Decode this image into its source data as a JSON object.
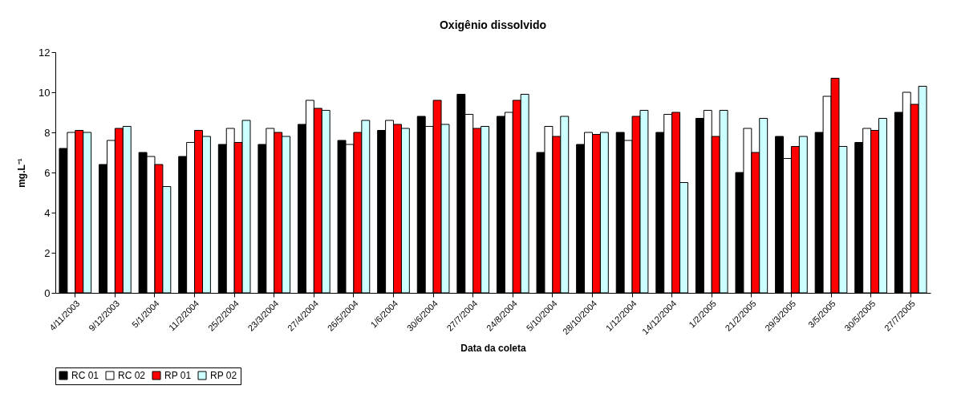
{
  "chart_data": {
    "type": "bar",
    "title": "Oxigênio dissolvido",
    "xlabel": "Data da coleta",
    "ylabel": "mg.L⁻¹",
    "categories": [
      "4/11/2003",
      "9/12/2003",
      "5/1/2004",
      "11/2/2004",
      "25/2/2004",
      "23/3/2004",
      "27/4/2004",
      "26/5/2004",
      "1/6/2004",
      "30/6/2004",
      "27/7/2004",
      "24/8/2004",
      "5/10/2004",
      "28/10/2004",
      "1/12/2004",
      "14/12/2004",
      "1/2/2005",
      "21/2/2005",
      "29/3/2005",
      "3/5/2005",
      "30/5/2005",
      "27/7/2005"
    ],
    "series": [
      {
        "name": "RC 01",
        "color": "#000000",
        "values": [
          7.2,
          6.4,
          7.0,
          6.8,
          7.4,
          7.4,
          8.4,
          7.6,
          8.1,
          8.8,
          9.9,
          8.8,
          7.0,
          7.4,
          8.0,
          8.0,
          8.7,
          6.0,
          7.8,
          8.0,
          7.5,
          9.0
        ]
      },
      {
        "name": "RC 02",
        "color": "#ffffff",
        "values": [
          8.0,
          7.6,
          6.8,
          7.5,
          8.2,
          8.2,
          9.6,
          7.4,
          8.6,
          8.3,
          8.9,
          9.0,
          8.3,
          8.0,
          7.6,
          8.9,
          9.1,
          8.2,
          6.7,
          9.8,
          8.2,
          10.0
        ]
      },
      {
        "name": "RP 01",
        "color": "#ff0000",
        "values": [
          8.1,
          8.2,
          6.4,
          8.1,
          7.5,
          8.0,
          9.2,
          8.0,
          8.4,
          9.6,
          8.2,
          9.6,
          7.8,
          7.9,
          8.8,
          9.0,
          7.8,
          7.0,
          7.3,
          10.7,
          8.1,
          9.4
        ]
      },
      {
        "name": "RP 02",
        "color": "#ccffff",
        "values": [
          8.0,
          8.3,
          5.3,
          7.8,
          8.6,
          7.8,
          9.1,
          8.6,
          8.2,
          8.4,
          8.3,
          9.9,
          8.8,
          8.0,
          9.1,
          5.5,
          9.1,
          8.7,
          7.8,
          7.3,
          8.7,
          10.3
        ]
      }
    ],
    "ylim": [
      0,
      12
    ],
    "yticks": [
      0,
      2,
      4,
      6,
      8,
      10,
      12
    ],
    "grid": false,
    "legend": "bottom"
  }
}
